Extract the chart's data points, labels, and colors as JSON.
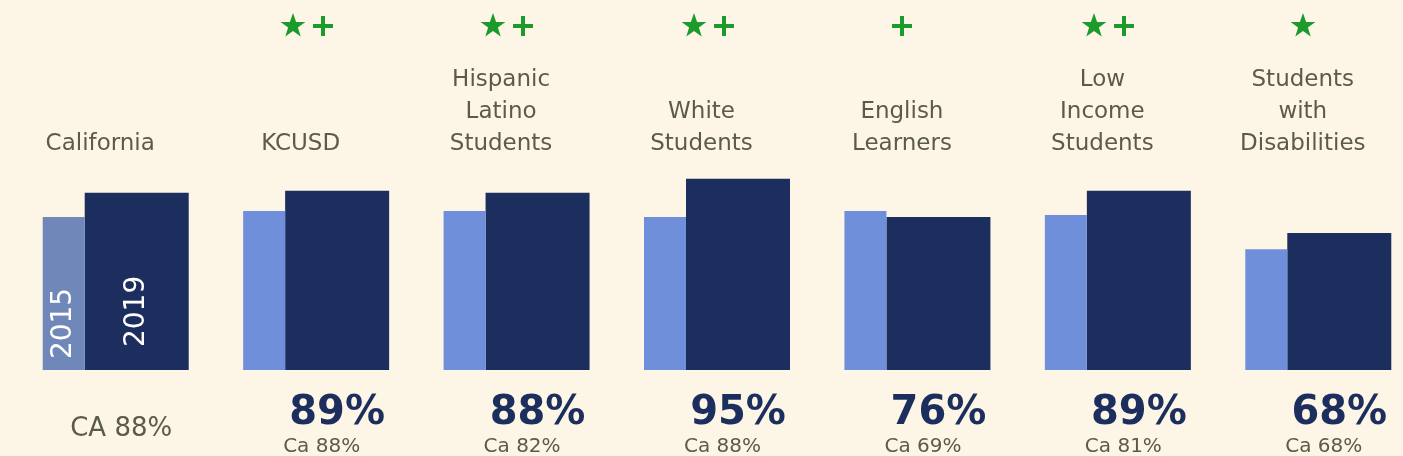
{
  "chart_data": {
    "type": "bar",
    "categories": [
      "California",
      "KCUSD",
      "Hispanic Latino Students",
      "White Students",
      "English Learners",
      "Low Income Students",
      "Students with Disabilities"
    ],
    "series": [
      {
        "name": "2015",
        "colors": [
          "#7087b9",
          "#6f8fdb",
          "#6f8fdb",
          "#6f8fdb",
          "#6f8fdb",
          "#6f8fdb",
          "#6f8fdb"
        ],
        "values": [
          76,
          79,
          79,
          76,
          79,
          77,
          60
        ]
      },
      {
        "name": "2019",
        "color": "#1b2e5e",
        "values": [
          88,
          89,
          88,
          95,
          76,
          89,
          68
        ],
        "value_labels": [
          null,
          "89%",
          "88%",
          "95%",
          "76%",
          "89%",
          "68%"
        ]
      }
    ],
    "annotations": [
      "CA 88%",
      "Ca 88%",
      "Ca 82%",
      "Ca 88%",
      "Ca 69%",
      "Ca 81%",
      "Ca 68%"
    ],
    "legend": false,
    "grid": false
  }
}
